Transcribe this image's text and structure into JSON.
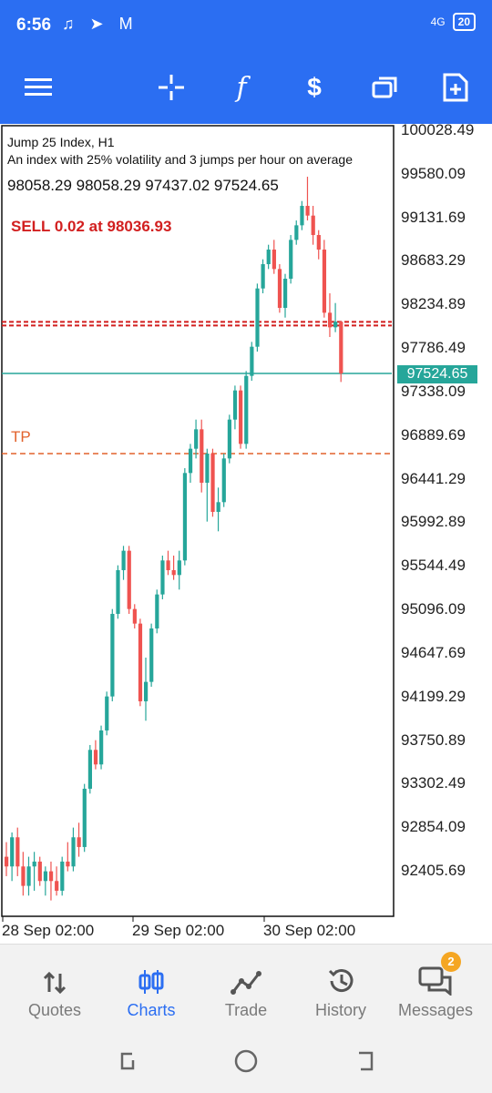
{
  "status": {
    "time": "6:56",
    "network": "4G",
    "battery": "20"
  },
  "toolbar": {
    "icons": [
      "menu-icon",
      "crosshair-icon",
      "indicators-icon",
      "trade-icon",
      "windows-icon",
      "new-order-icon"
    ]
  },
  "chart": {
    "symbol_line": "Jump 25 Index, H1",
    "description": "An index with 25% volatility and 3 jumps per hour on average",
    "ohlc": "98058.29 98058.29 97437.02 97524.65",
    "current_price": "97524.65",
    "sell_label": "SELL 0.02 at 98036.93",
    "tp_label": "TP",
    "y_ticks": [
      "100028.49",
      "99580.09",
      "99131.69",
      "98683.29",
      "98234.89",
      "97786.49",
      "97338.09",
      "96889.69",
      "96441.29",
      "95992.89",
      "95544.49",
      "95096.09",
      "94647.69",
      "94199.29",
      "93750.89",
      "93302.49",
      "92854.09",
      "92405.69"
    ],
    "x_ticks": [
      "28 Sep 02:00",
      "29 Sep 02:00",
      "30 Sep 02:00"
    ],
    "colors": {
      "up": "#26a69a",
      "down": "#ef5350",
      "sell_line": "#d21f1f",
      "tp_line": "#e2622c"
    }
  },
  "chart_data": {
    "type": "candlestick",
    "title": "Jump 25 Index, H1",
    "x": [
      "28 Sep 02:00",
      "29 Sep 02:00",
      "30 Sep 02:00"
    ],
    "ylim": [
      92100,
      100100
    ],
    "series": [
      {
        "name": "Jump 25 Index",
        "candles": [
          [
            92550,
            92700,
            92350,
            92450
          ],
          [
            92450,
            92800,
            92300,
            92750
          ],
          [
            92750,
            92850,
            92350,
            92450
          ],
          [
            92450,
            92600,
            92150,
            92250
          ],
          [
            92250,
            92550,
            92150,
            92450
          ],
          [
            92450,
            92600,
            92200,
            92500
          ],
          [
            92500,
            92550,
            92250,
            92300
          ],
          [
            92300,
            92450,
            92150,
            92400
          ],
          [
            92400,
            92500,
            92100,
            92300
          ],
          [
            92300,
            92450,
            92150,
            92200
          ],
          [
            92200,
            92550,
            92150,
            92500
          ],
          [
            92500,
            92700,
            92400,
            92450
          ],
          [
            92450,
            92850,
            92400,
            92750
          ],
          [
            92750,
            92900,
            92550,
            92650
          ],
          [
            92650,
            93300,
            92600,
            93250
          ],
          [
            93250,
            93700,
            93200,
            93650
          ],
          [
            93650,
            93750,
            93450,
            93500
          ],
          [
            93500,
            93900,
            93450,
            93850
          ],
          [
            93850,
            94250,
            93800,
            94200
          ],
          [
            94200,
            95100,
            94150,
            95050
          ],
          [
            95050,
            95550,
            95000,
            95500
          ],
          [
            95500,
            95750,
            95400,
            95700
          ],
          [
            95700,
            95750,
            95050,
            95100
          ],
          [
            95100,
            95150,
            94900,
            94950
          ],
          [
            94950,
            95000,
            94100,
            94150
          ],
          [
            94150,
            94600,
            93950,
            94350
          ],
          [
            94350,
            94950,
            94300,
            94900
          ],
          [
            94900,
            95300,
            94850,
            95250
          ],
          [
            95250,
            95650,
            95200,
            95600
          ],
          [
            95600,
            95700,
            95450,
            95500
          ],
          [
            95500,
            95650,
            95400,
            95450
          ],
          [
            95450,
            95700,
            95300,
            95600
          ],
          [
            95600,
            96550,
            95550,
            96500
          ],
          [
            96500,
            96800,
            96400,
            96750
          ],
          [
            96750,
            97050,
            96650,
            96950
          ],
          [
            96950,
            97050,
            96300,
            96400
          ],
          [
            96400,
            96750,
            96000,
            96700
          ],
          [
            96700,
            96750,
            96050,
            96100
          ],
          [
            96100,
            96350,
            95900,
            96200
          ],
          [
            96200,
            96700,
            96150,
            96650
          ],
          [
            96650,
            97100,
            96600,
            97050
          ],
          [
            97050,
            97400,
            96950,
            97350
          ],
          [
            97350,
            97400,
            96750,
            96800
          ],
          [
            96800,
            97550,
            96750,
            97500
          ],
          [
            97500,
            97850,
            97450,
            97800
          ],
          [
            97800,
            98450,
            97750,
            98400
          ],
          [
            98400,
            98700,
            98350,
            98650
          ],
          [
            98650,
            98850,
            98600,
            98800
          ],
          [
            98800,
            98900,
            98550,
            98600
          ],
          [
            98600,
            98650,
            98150,
            98200
          ],
          [
            98200,
            98550,
            98100,
            98500
          ],
          [
            98500,
            98950,
            98450,
            98900
          ],
          [
            98900,
            99100,
            98850,
            99050
          ],
          [
            99050,
            99300,
            99000,
            99250
          ],
          [
            99250,
            99550,
            99100,
            99150
          ],
          [
            99150,
            99250,
            98850,
            98950
          ],
          [
            98950,
            99000,
            98700,
            98800
          ],
          [
            98800,
            98900,
            98100,
            98150
          ],
          [
            98150,
            98350,
            97900,
            98000
          ],
          [
            98000,
            98250,
            97950,
            98058.29
          ],
          [
            98058.29,
            98058.29,
            97437.02,
            97524.65
          ]
        ]
      }
    ],
    "annotations": [
      "SELL 0.02 at 98036.93",
      "TP"
    ],
    "grid": false
  },
  "nav": {
    "items": [
      {
        "label": "Quotes",
        "icon": "quotes-icon",
        "active": false
      },
      {
        "label": "Charts",
        "icon": "charts-icon",
        "active": true
      },
      {
        "label": "Trade",
        "icon": "trade-icon",
        "active": false
      },
      {
        "label": "History",
        "icon": "history-icon",
        "active": false
      },
      {
        "label": "Messages",
        "icon": "messages-icon",
        "active": false,
        "badge": "2"
      }
    ]
  }
}
